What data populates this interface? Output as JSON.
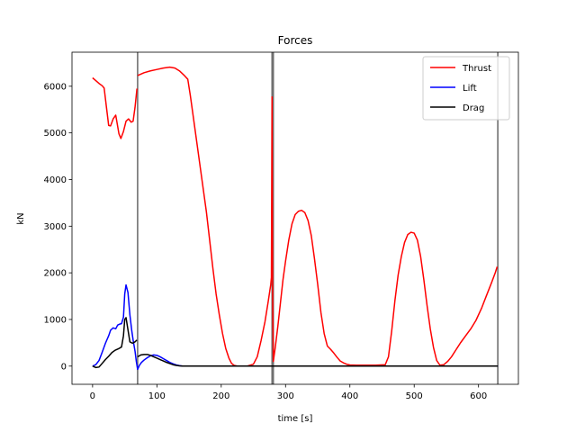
{
  "chart_data": {
    "type": "line",
    "title": "Forces",
    "xlabel": "time [s]",
    "ylabel": "kN",
    "xlim": [
      -32,
      662
    ],
    "ylim": [
      -390,
      6730
    ],
    "xticks": [
      0,
      100,
      200,
      300,
      400,
      500,
      600
    ],
    "yticks": [
      0,
      1000,
      2000,
      3000,
      4000,
      5000,
      6000
    ],
    "grid": false,
    "legend_position": "upper right",
    "vertical_lines": [
      70,
      279,
      281,
      630
    ],
    "series": [
      {
        "name": "Thrust",
        "color": "#ff0000",
        "segments": [
          [
            [
              0,
              6180
            ],
            [
              5,
              6120
            ],
            [
              10,
              6060
            ],
            [
              15,
              6010
            ],
            [
              18,
              5960
            ],
            [
              22,
              5500
            ],
            [
              25,
              5160
            ],
            [
              28,
              5150
            ],
            [
              32,
              5300
            ],
            [
              36,
              5380
            ],
            [
              38,
              5220
            ],
            [
              41,
              4980
            ],
            [
              44,
              4880
            ],
            [
              48,
              5030
            ],
            [
              52,
              5250
            ],
            [
              56,
              5300
            ],
            [
              60,
              5230
            ],
            [
              63,
              5250
            ],
            [
              66,
              5550
            ],
            [
              69,
              5950
            ]
          ],
          [
            [
              70,
              6230
            ],
            [
              80,
              6290
            ],
            [
              90,
              6330
            ],
            [
              100,
              6360
            ],
            [
              110,
              6390
            ],
            [
              120,
              6410
            ],
            [
              128,
              6390
            ],
            [
              135,
              6330
            ],
            [
              142,
              6240
            ],
            [
              148,
              6150
            ],
            [
              152,
              5800
            ],
            [
              157,
              5300
            ],
            [
              162,
              4800
            ],
            [
              167,
              4300
            ],
            [
              172,
              3800
            ],
            [
              177,
              3300
            ],
            [
              182,
              2700
            ],
            [
              187,
              2100
            ],
            [
              192,
              1550
            ],
            [
              197,
              1100
            ],
            [
              202,
              700
            ],
            [
              207,
              380
            ],
            [
              212,
              170
            ],
            [
              216,
              60
            ],
            [
              220,
              15
            ],
            [
              225,
              0
            ],
            [
              240,
              0
            ],
            [
              250,
              40
            ],
            [
              256,
              200
            ],
            [
              262,
              550
            ],
            [
              268,
              950
            ],
            [
              273,
              1380
            ],
            [
              277,
              1750
            ],
            [
              278,
              1900
            ],
            [
              279,
              5780
            ]
          ],
          [
            [
              279,
              5780
            ],
            [
              280,
              1400
            ],
            [
              281,
              100
            ],
            [
              284,
              400
            ],
            [
              288,
              850
            ],
            [
              292,
              1350
            ],
            [
              296,
              1850
            ],
            [
              300,
              2250
            ],
            [
              305,
              2700
            ],
            [
              310,
              3050
            ],
            [
              315,
              3250
            ],
            [
              320,
              3320
            ],
            [
              325,
              3340
            ],
            [
              330,
              3290
            ],
            [
              335,
              3120
            ],
            [
              340,
              2800
            ],
            [
              345,
              2300
            ],
            [
              350,
              1750
            ],
            [
              355,
              1150
            ],
            [
              360,
              700
            ],
            [
              365,
              430
            ],
            [
              370,
              360
            ],
            [
              375,
              280
            ],
            [
              380,
              190
            ],
            [
              385,
              110
            ],
            [
              390,
              70
            ],
            [
              395,
              40
            ],
            [
              400,
              25
            ],
            [
              410,
              20
            ],
            [
              420,
              20
            ],
            [
              440,
              20
            ],
            [
              455,
              30
            ],
            [
              460,
              200
            ],
            [
              465,
              750
            ],
            [
              470,
              1400
            ],
            [
              475,
              1950
            ],
            [
              480,
              2350
            ],
            [
              485,
              2650
            ],
            [
              490,
              2820
            ],
            [
              495,
              2870
            ],
            [
              500,
              2850
            ],
            [
              505,
              2700
            ],
            [
              510,
              2350
            ],
            [
              515,
              1850
            ],
            [
              520,
              1300
            ],
            [
              525,
              800
            ],
            [
              530,
              400
            ],
            [
              535,
              120
            ],
            [
              540,
              20
            ],
            [
              546,
              30
            ],
            [
              552,
              100
            ],
            [
              558,
              200
            ],
            [
              565,
              350
            ],
            [
              572,
              500
            ],
            [
              580,
              650
            ],
            [
              588,
              800
            ],
            [
              596,
              980
            ],
            [
              605,
              1250
            ],
            [
              612,
              1500
            ],
            [
              620,
              1780
            ],
            [
              626,
              2000
            ],
            [
              629,
              2130
            ]
          ]
        ]
      },
      {
        "name": "Lift",
        "color": "#0000ff",
        "segments": [
          [
            [
              0,
              0
            ],
            [
              5,
              30
            ],
            [
              10,
              120
            ],
            [
              15,
              300
            ],
            [
              20,
              490
            ],
            [
              25,
              650
            ],
            [
              28,
              770
            ],
            [
              32,
              820
            ],
            [
              36,
              800
            ],
            [
              39,
              880
            ],
            [
              42,
              900
            ],
            [
              45,
              910
            ],
            [
              48,
              1050
            ],
            [
              50,
              1550
            ],
            [
              52,
              1740
            ],
            [
              55,
              1580
            ],
            [
              58,
              1100
            ],
            [
              61,
              750
            ],
            [
              63,
              560
            ],
            [
              66,
              320
            ],
            [
              68,
              100
            ],
            [
              70,
              -70
            ],
            [
              73,
              20
            ],
            [
              76,
              80
            ],
            [
              80,
              130
            ],
            [
              85,
              180
            ],
            [
              90,
              220
            ],
            [
              95,
              240
            ],
            [
              100,
              230
            ],
            [
              105,
              200
            ],
            [
              110,
              160
            ],
            [
              115,
              120
            ],
            [
              120,
              80
            ],
            [
              125,
              50
            ],
            [
              130,
              25
            ],
            [
              135,
              10
            ],
            [
              140,
              0
            ],
            [
              200,
              0
            ],
            [
              280,
              0
            ],
            [
              400,
              0
            ],
            [
              500,
              0
            ],
            [
              630,
              0
            ]
          ]
        ]
      },
      {
        "name": "Drag",
        "color": "#000000",
        "segments": [
          [
            [
              0,
              0
            ],
            [
              5,
              -30
            ],
            [
              10,
              -20
            ],
            [
              15,
              60
            ],
            [
              20,
              140
            ],
            [
              25,
              210
            ],
            [
              30,
              290
            ],
            [
              35,
              340
            ],
            [
              40,
              370
            ],
            [
              45,
              410
            ],
            [
              48,
              650
            ],
            [
              50,
              1000
            ],
            [
              52,
              1040
            ],
            [
              55,
              780
            ],
            [
              58,
              520
            ],
            [
              62,
              490
            ],
            [
              66,
              520
            ],
            [
              69,
              560
            ]
          ],
          [
            [
              70,
              200
            ],
            [
              75,
              240
            ],
            [
              80,
              250
            ],
            [
              85,
              250
            ],
            [
              90,
              230
            ],
            [
              95,
              200
            ],
            [
              100,
              170
            ],
            [
              105,
              140
            ],
            [
              110,
              110
            ],
            [
              115,
              80
            ],
            [
              120,
              55
            ],
            [
              125,
              30
            ],
            [
              130,
              15
            ],
            [
              135,
              5
            ],
            [
              140,
              0
            ],
            [
              200,
              0
            ],
            [
              280,
              0
            ],
            [
              400,
              0
            ],
            [
              500,
              0
            ],
            [
              630,
              0
            ]
          ]
        ]
      }
    ]
  }
}
